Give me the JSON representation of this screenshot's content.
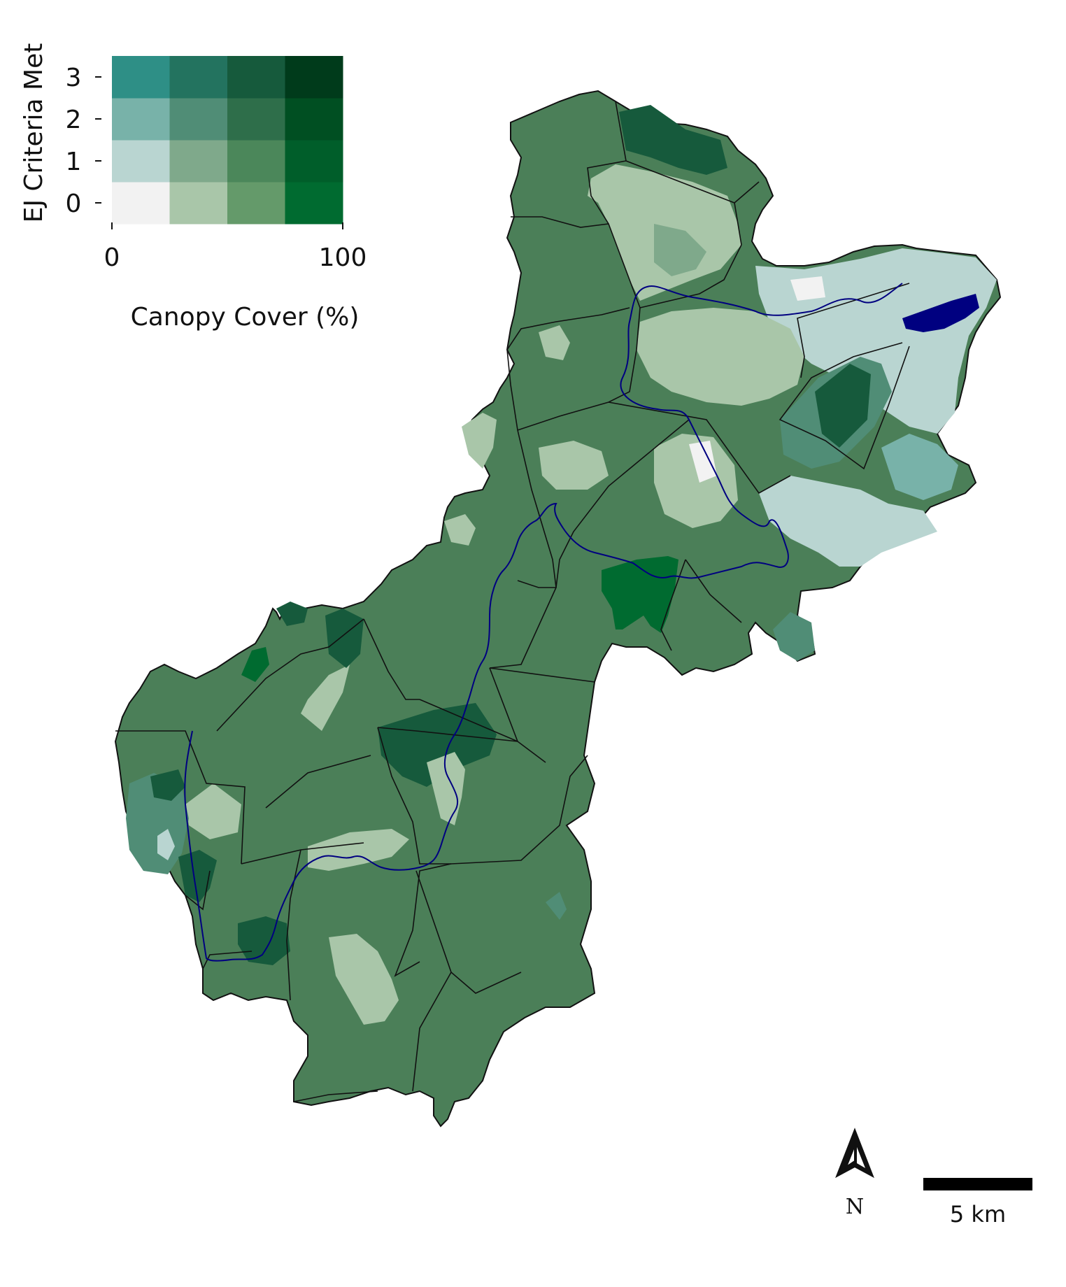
{
  "legend": {
    "y_label": "EJ Criteria Met",
    "x_label": "Canopy Cover (%)",
    "y_ticks": [
      "0",
      "1",
      "2",
      "3"
    ],
    "x_ticks": [
      "0",
      "100"
    ],
    "grid_colors": [
      [
        "#f2f2f2",
        "#a9c6a9",
        "#649a6a",
        "#006b30"
      ],
      [
        "#b9d5d1",
        "#7fa98b",
        "#4b875a",
        "#005e2a"
      ],
      [
        "#78b2a9",
        "#508d76",
        "#2e6e4a",
        "#004f22"
      ],
      [
        "#2e8f86",
        "#23735f",
        "#165a3c",
        "#003b1b"
      ]
    ]
  },
  "north_arrow": {
    "label": "N"
  },
  "scale_bar": {
    "label": "5 km"
  },
  "colors": {
    "rural_fill": "#4b7f58",
    "boundary": "#111111",
    "river": "#000080"
  }
}
